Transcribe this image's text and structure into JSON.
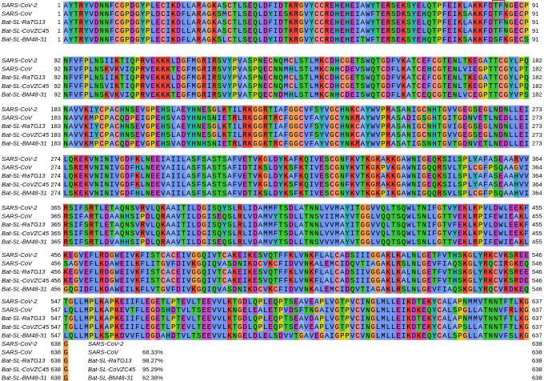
{
  "sequence_names": [
    "SARS-CoV-2",
    "SARS-CoV",
    "Bat-SL-RaTG13",
    "Bat-SL-CoVZC45",
    "Bat-SL-BM48-31"
  ],
  "blocks": [
    {
      "start": 1,
      "end": 91,
      "rows": [
        "AYTRYVDNNFCGPDGYPLECIKDLLARAGKASCTLSEQLDFIDTKRGVYCCREHEHEIAWYTERSEKSYELQTPFEIKLAKKFDTFNGECP",
        "AYTRYVDNNFCGPDGYPLDCIKDFLARAGKSMCTLSEQLDYIESKRGVYCCRDHEHEIAWFTERSDKSYEHQTPFEIKSAKKFDTFKGECP",
        "AYTRYVDNNFCGPDGYPLECIKDLLARAGKASCTLSEQLDFIDTKRGVYCCREHEHEIAWYTERSEKSYELQTPFEIKLAKKFDTFNGECP",
        "AYTRYVDNNFCGPDGYPLECIKDLLARAGKASCTLSEQLDFIDTKRGVYCCREHEHEIAWYTERSDKSYELQTPFEIKLAKKFDTFNGECP",
        "AYTRYVDNNFCGPDGYPLECIKDFLARAGKSLCTLSEQLDYIDTKRGVYCCRDHEHEITWFTERSEKSYEHQTPFEIKSAKKFDSFKGECS"
      ]
    },
    {
      "start": 92,
      "end": 182,
      "rows": [
        "NFVFPLNSIIKTIQPRVEKKKLDGFMGRIRSVYPVASPNECNQMCLSTLMKCDHCGETSWQTGDFVKATCEFCGTENLTKEGATTCGYLPQ",
        "NFVFPLNSKVKVIQPRVEKKKTEGFMGRIRSVYPVASPQECNNMHLSTLMKCNHCDEVSWQTCDFLKATCEHCGTENLVIEGPTTCGYLPT",
        "NFVFPLNSIIKTIQPRVEKKKLDGFMGRIRSVYPVASPNECNQMCLSTLMKCDHCGETSWQTGDFVKATCEFCGTENLTKEGATTCGYLPQ",
        "NFVFPLNSVIKTIQPRVEKKKLDGFMGRIRSVYPVASPNECNQMCLSTLMKCDHCGETSWQTGDFVKATCEFCGTENLTKEGPTTCGYLPQ",
        "NFVFPLNSKVKVIQPRVEKKKTEGFMGRIRSVYPVATPQECNDMHLSTLMKCNHCDEISWQTCDFLKATCEQCGTENLVCEGPTTCGYVPS"
      ]
    },
    {
      "start": 183,
      "end": 273,
      "rows": [
        "NAVVKIYCPACHNSEVGPEHSLAEYHNESGLKTILRKGGRTIAFGGCVFSYVGCHNKCAYWVPRASANIGCNHTGVVGEGSEGLNDNLLEI",
        "NAVVKMPCPACQDPEIGPEHSVADYHNHSNIETRLRKGGRTRCFGGCVFAYVGCYNKRAYWVPRASADIGSGHTGITGDNVETLNEDLLEI",
        "NAVVKIYCPACHNSEVGPEHSLAEYHNESGLKTILRKGGRTIAFGGCVFSYVGCHNKCAYWVPRASANIGCNHTGVIGEGSEGLNDNLLEI",
        "NAVVKIYCPACHNSEVGPEHSLADYHNESGLKTILRKGGRTIAFGGCVFSYVGCHNKCAYWVPRASANIGCNHTGVVGEGSEGLNDNLLEI",
        "NAVVKMPCPACQDPEVGPEHSVADYHNHSNIETRLRKGGKTRCFGGCVFAYVGCYNKRAYWVPRASATIGSNHTGVTGDNVETLNEDLLEI"
      ]
    },
    {
      "start": 274,
      "end": 364,
      "rows": [
        "LQKEKVNINIVGDFKLNEEIAIILASFSASTSAFVETVKGLDYKAFKQIVESCGNFKVTKGKAKKGAWNIGEQKSILSPLYAFASEAARVV",
        "LSRERVNINIVGDFHLNEEVAIILASFSASTSAFIDTIKSLDYKSFKTIVESCGNYKVTKGKPVKGAWNIGQQRSVLTPLCGFPSQAAGVI",
        "LQKEKVNINIVGDFKLNEEIAIILASFSASTSAFVETVKGLDYKAFKQIVESCGNFKVTKGKAKKGAWNIGEQKSILSPLYAFASEAAHVV",
        "LQKEKVNINIVGDFKLNEEVAIILASFSASTSAFVETVKGLDYKSFKQIVESCGNFKVTKGRAKKGAWNIGEQKSILSPLYAFASEAAHVV",
        "LSKEKVNINIVGDFHLNEEVAIILASFSASTSAFVDTIKSLDYKSFKTIVESCGNYKVTKGKPIKGAWNIGQQRSVLSPLCGFPSQAAHVI"
      ]
    },
    {
      "start": 365,
      "end": 455,
      "rows": [
        "RSIFSRTLETAQNSVRVLQKAAITILDGISQYSLRLIDAMMFTSDLATNNLVVMAYITGGVVQLTSQWLTNIFGTVYEKLKPVLDWLEEKF",
        "RSIFARTLDAANHSIPDLQRAAVTILDGISEQSLRLVDAMVYTSDLLTNSVIIMAYVTGGLVQQTSQWLSNLLGTTVEKLRPIFEWIEAKL",
        "RSIFSRTLETAQNSVRVLQKAAITILDGISQYSLRLIDAMMFTSDLATNNLVVMAYITGGVVQLTSQWLTNIFGTVFEKLKPVLDWLEEKF",
        "RSIFSRTLETAQNSVRVLQKAAITILDGISQYSLRLIDAMMFTSDLATNNLVVMAYITGGVVQLTSQWLTNIFGTVYEKLKPVLEWLEEKF",
        "RSIFSRTLDVAHHSIPDLQRAAVTILDGISEQSLRLVDAMVYTSDLLTNSVVVMAYVTGGLVQQTSQWLSNLLGTTVEKLRPIFEWIEAKL"
      ]
    },
    {
      "start": 456,
      "end": 546,
      "rows": [
        "KEGVEFLRDGWEIVKFISTCACEIVGGQIVTCAKEIKESVQTFFKLVNKFLALCADSIIIGGAKLKALNLGETFVTHSKGLYRKCVKSREE",
        "SAGVEFLKDAWEILKFLITGVFDIVKGQIQVASDNIKDCVKCFIDVVNKALEMCIDQVTIAGAKLRSLNLGEVFIAQSKGLYRQCIRGKEQ",
        "KEGVEFLRDGWEIVKFISTCACEIVGGQIVTCAKEIKESVQTFFKLVNKFLALCADSIIVGGAKLKALNLGETFVTHSKGLYRKCVKSREE",
        "KEGVEFLRDGWEIVKFISTCACEIVGGQIVTCAKEIKESVQTFFKLVNKFLALCADSIIIGGAKLKALNLGETFVTHSKGLYRKCVKSRDE",
        "GQGIDFLKDAWEILKFLVTGVFDIVKGQIQVASDNIKDCVKCFIDVVNKALEMCIDQVTIAGAKLRSLNLGEVFIAQSKGLYRQCVRDKEQ"
      ]
    },
    {
      "start": 547,
      "end": 637,
      "rows": [
        "TGLLMPLKAPKEIIFLEGETLPTEVLTEEVVLKTGDLQPLEQPTSEAVEAPLVGTPVCINGLMLLEIKDTEKYCALAPNMMVTNNTFTLKG",
        "LQLLMPLKAPKEVTFLEGDSHDTVLTSEEVVLKNGELEALETPVDSFTNGAIVGTPVCVNGLMLLEIKDKEQYCALSPGLLATNNVFRLKG",
        "TGLLMPLKAPKEIIFLEGETLPTEVLTEEVVLKTGDLQPLEQPTSEAVDAPLVGTPVCINGLMLLEIKDTEKYCALAPNMMVTNNTFTLKG",
        "TGLLMPLKAPKEIIFLEGETLPTEVLTEEVVLKTGDLQPLEQPTSEAVEAPLVGTPVCINGLMLLEIKDTEKYCALAPSLLATNNTFTLKG",
        "LQLLMPLKSPKDVVFLDGDAHDTVLTSEEVVLKNGELDLELSDVVTGAVEGAIGPPVCVNGLMLLEIKDKEQYCALSPGLLATNNVFSLKG"
      ]
    },
    {
      "start": 638,
      "end": 638,
      "rows": [
        "G",
        "G",
        "G",
        "G",
        "G"
      ]
    }
  ],
  "identity": {
    "names": [
      "SARS-CoV-2",
      "SARS-CoV",
      "Bat-SL-RaTG13",
      "Bat-SL-CoVZC45",
      "Bat-SL-BM48-31"
    ],
    "values": [
      null,
      "68.33%",
      "98.27%",
      "95.29%",
      "62.38%"
    ]
  }
}
